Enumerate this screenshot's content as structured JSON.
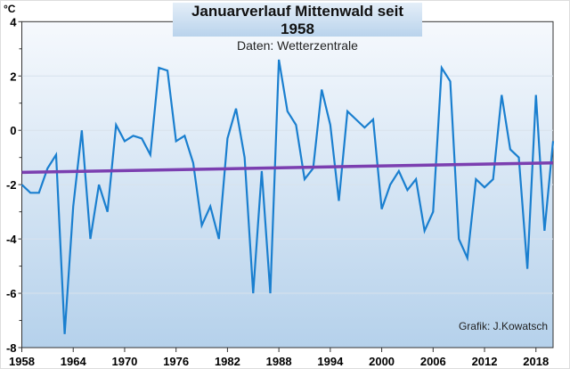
{
  "chart_data": {
    "type": "line",
    "title": "Januarverlauf Mittenwald seit 1958",
    "subtitle": "Daten: Wetterzentrale",
    "credit": "Grafik: J.Kowatsch",
    "ylabel": "°C",
    "xlabel": "",
    "xlim": [
      1958,
      2020
    ],
    "ylim": [
      -8,
      4
    ],
    "yticks": [
      4,
      2,
      0,
      -2,
      -4,
      -6,
      -8
    ],
    "xticks": [
      1958,
      1964,
      1970,
      1976,
      1982,
      1988,
      1994,
      2000,
      2006,
      2012,
      2018
    ],
    "grid": true,
    "x_start": 1958,
    "series": [
      {
        "name": "Januar",
        "color": "#1a7fcf",
        "values": [
          -2.0,
          -2.3,
          -2.3,
          -1.4,
          -0.9,
          -7.5,
          -2.8,
          0.0,
          -4.0,
          -2.0,
          -3.0,
          0.2,
          -0.4,
          -0.2,
          -0.3,
          -0.9,
          2.3,
          2.2,
          -0.4,
          -0.2,
          -1.2,
          -3.5,
          -2.8,
          -4.0,
          -0.3,
          0.8,
          -1.0,
          -6.0,
          -1.5,
          -6.0,
          2.6,
          0.7,
          0.2,
          -1.8,
          -1.4,
          1.5,
          0.2,
          -2.6,
          0.7,
          0.4,
          0.1,
          0.4,
          -2.9,
          -2.0,
          -1.5,
          -2.2,
          -1.8,
          -3.7,
          -3.0,
          2.3,
          1.8,
          -4.0,
          -4.7,
          -1.8,
          -2.1,
          -1.8,
          1.3,
          -0.7,
          -1.0,
          -5.1,
          1.3,
          -3.7,
          -0.4
        ]
      },
      {
        "name": "Trend",
        "color": "#7b3fb0",
        "type": "trendline",
        "x": [
          1958,
          2020
        ],
        "values": [
          -1.55,
          -1.2
        ]
      }
    ]
  }
}
